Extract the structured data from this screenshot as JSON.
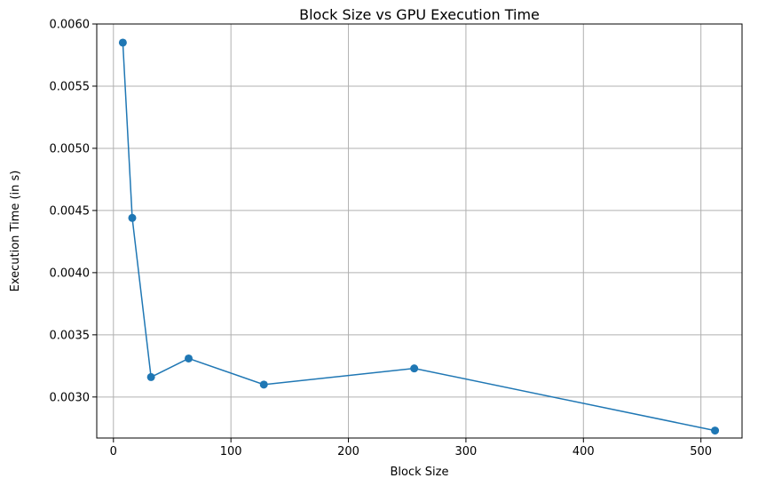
{
  "chart_data": {
    "type": "line",
    "title": "Block Size vs GPU Execution Time",
    "xlabel": "Block Size",
    "ylabel": "Execution Time (in s)",
    "xlim": [
      -14.2,
      535.0
    ],
    "ylim": [
      0.00267,
      0.006
    ],
    "xticks": [
      0,
      100,
      200,
      300,
      400,
      500
    ],
    "xtick_labels": [
      "0",
      "100",
      "200",
      "300",
      "400",
      "500"
    ],
    "yticks": [
      0.003,
      0.0035,
      0.004,
      0.0045,
      0.005,
      0.0055,
      0.006
    ],
    "ytick_labels": [
      "0.0030",
      "0.0035",
      "0.0040",
      "0.0045",
      "0.0050",
      "0.0055",
      "0.0060"
    ],
    "grid": true,
    "marker": "circle",
    "color": "#1f77b4",
    "series": [
      {
        "x": [
          8,
          16,
          32,
          64,
          128,
          256,
          512
        ],
        "y": [
          0.00585,
          0.00444,
          0.00316,
          0.00331,
          0.0031,
          0.00323,
          0.00273
        ]
      }
    ]
  }
}
